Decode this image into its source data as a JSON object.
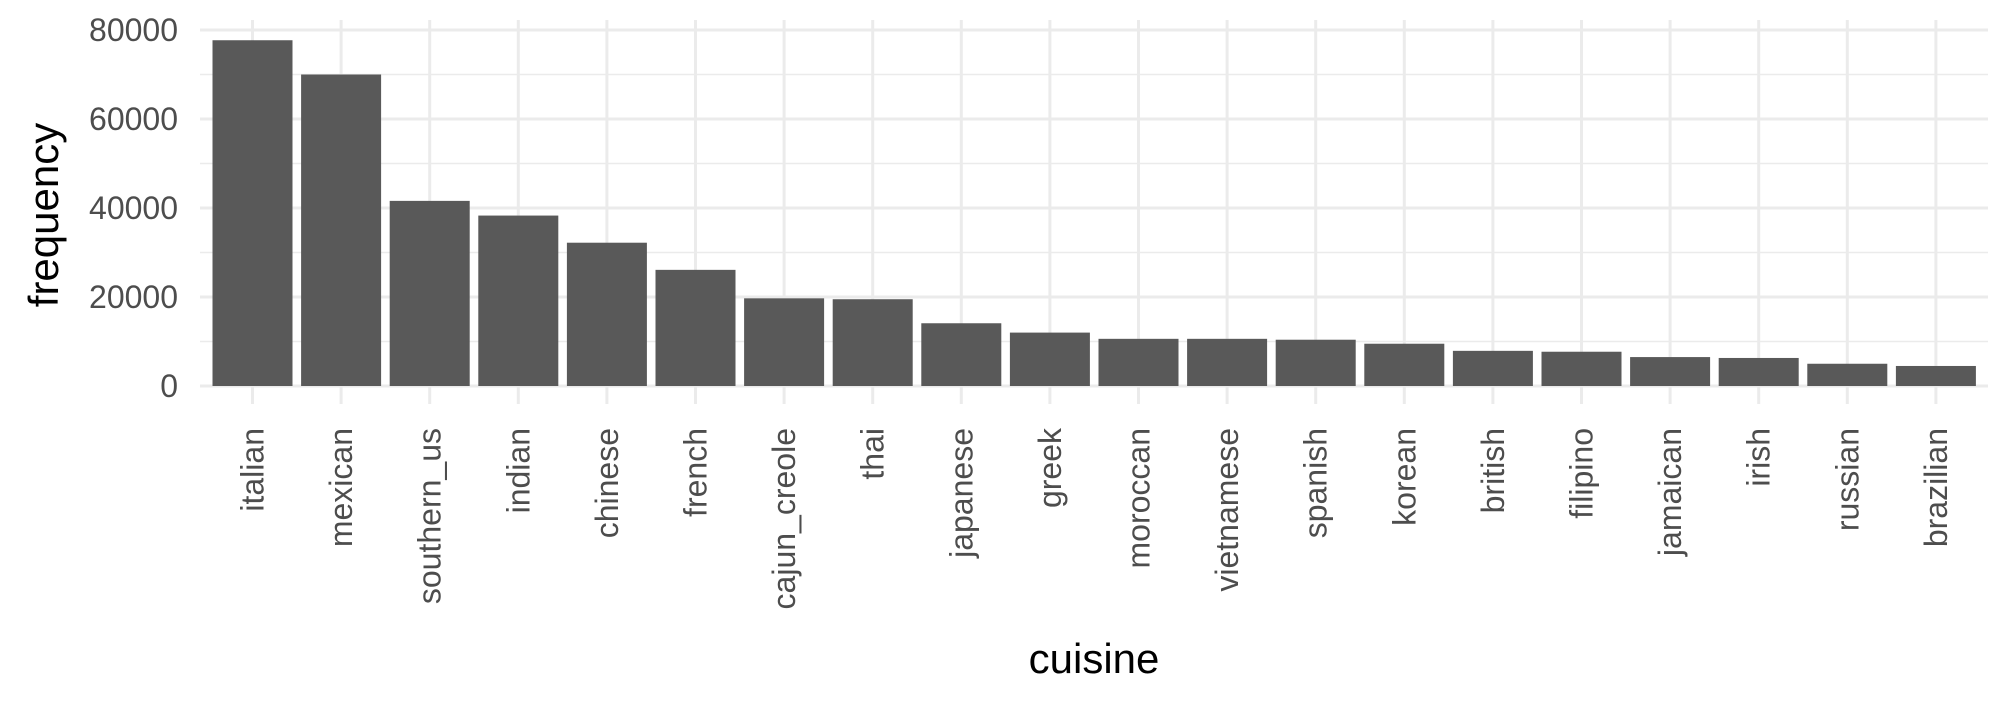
{
  "chart_data": {
    "type": "bar",
    "xlabel": "cuisine",
    "ylabel": "frequency",
    "ylim": [
      0,
      80000
    ],
    "yticks": [
      0,
      20000,
      40000,
      60000,
      80000
    ],
    "grid": true,
    "bar_color": "#595959",
    "grid_color": "#ebebeb",
    "categories": [
      "italian",
      "mexican",
      "southern_us",
      "indian",
      "chinese",
      "french",
      "cajun_creole",
      "thai",
      "japanese",
      "greek",
      "moroccan",
      "vietnamese",
      "spanish",
      "korean",
      "british",
      "filipino",
      "jamaican",
      "irish",
      "russian",
      "brazilian"
    ],
    "values": [
      77700,
      70000,
      41600,
      38300,
      32200,
      26100,
      19700,
      19500,
      14100,
      12000,
      10600,
      10600,
      10400,
      9500,
      7900,
      7700,
      6500,
      6300,
      5000,
      4500
    ]
  }
}
